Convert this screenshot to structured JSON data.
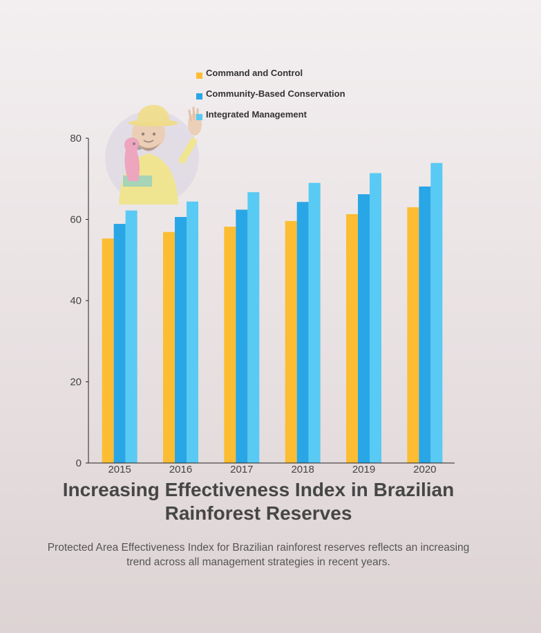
{
  "chart_data": {
    "type": "bar",
    "title": "Increasing Effectiveness Index in Brazilian Rainforest Reserves",
    "subtitle": "Protected Area Effectiveness Index for Brazilian rainforest reserves reflects an increasing trend across all management strategies in recent years.",
    "categories": [
      "2015",
      "2016",
      "2017",
      "2018",
      "2019",
      "2020"
    ],
    "series": [
      {
        "name": "Command and Control",
        "color": "#fdbd32",
        "values": [
          55.3,
          56.9,
          58.2,
          59.6,
          61.3,
          63.0
        ]
      },
      {
        "name": "Community-Based Conservation",
        "color": "#29a6e6",
        "values": [
          58.9,
          60.6,
          62.4,
          64.3,
          66.2,
          68.1
        ]
      },
      {
        "name": "Integrated Management",
        "color": "#59caf3",
        "values": [
          62.2,
          64.4,
          66.7,
          69.0,
          71.4,
          73.9
        ]
      }
    ],
    "ylim": [
      0,
      80
    ],
    "yticks": [
      0,
      20,
      40,
      60,
      80
    ],
    "xlabel": "",
    "ylabel": "",
    "grid": false,
    "legend": "top"
  },
  "decoration": {
    "illustration": "ranger-with-parrot-icon"
  }
}
